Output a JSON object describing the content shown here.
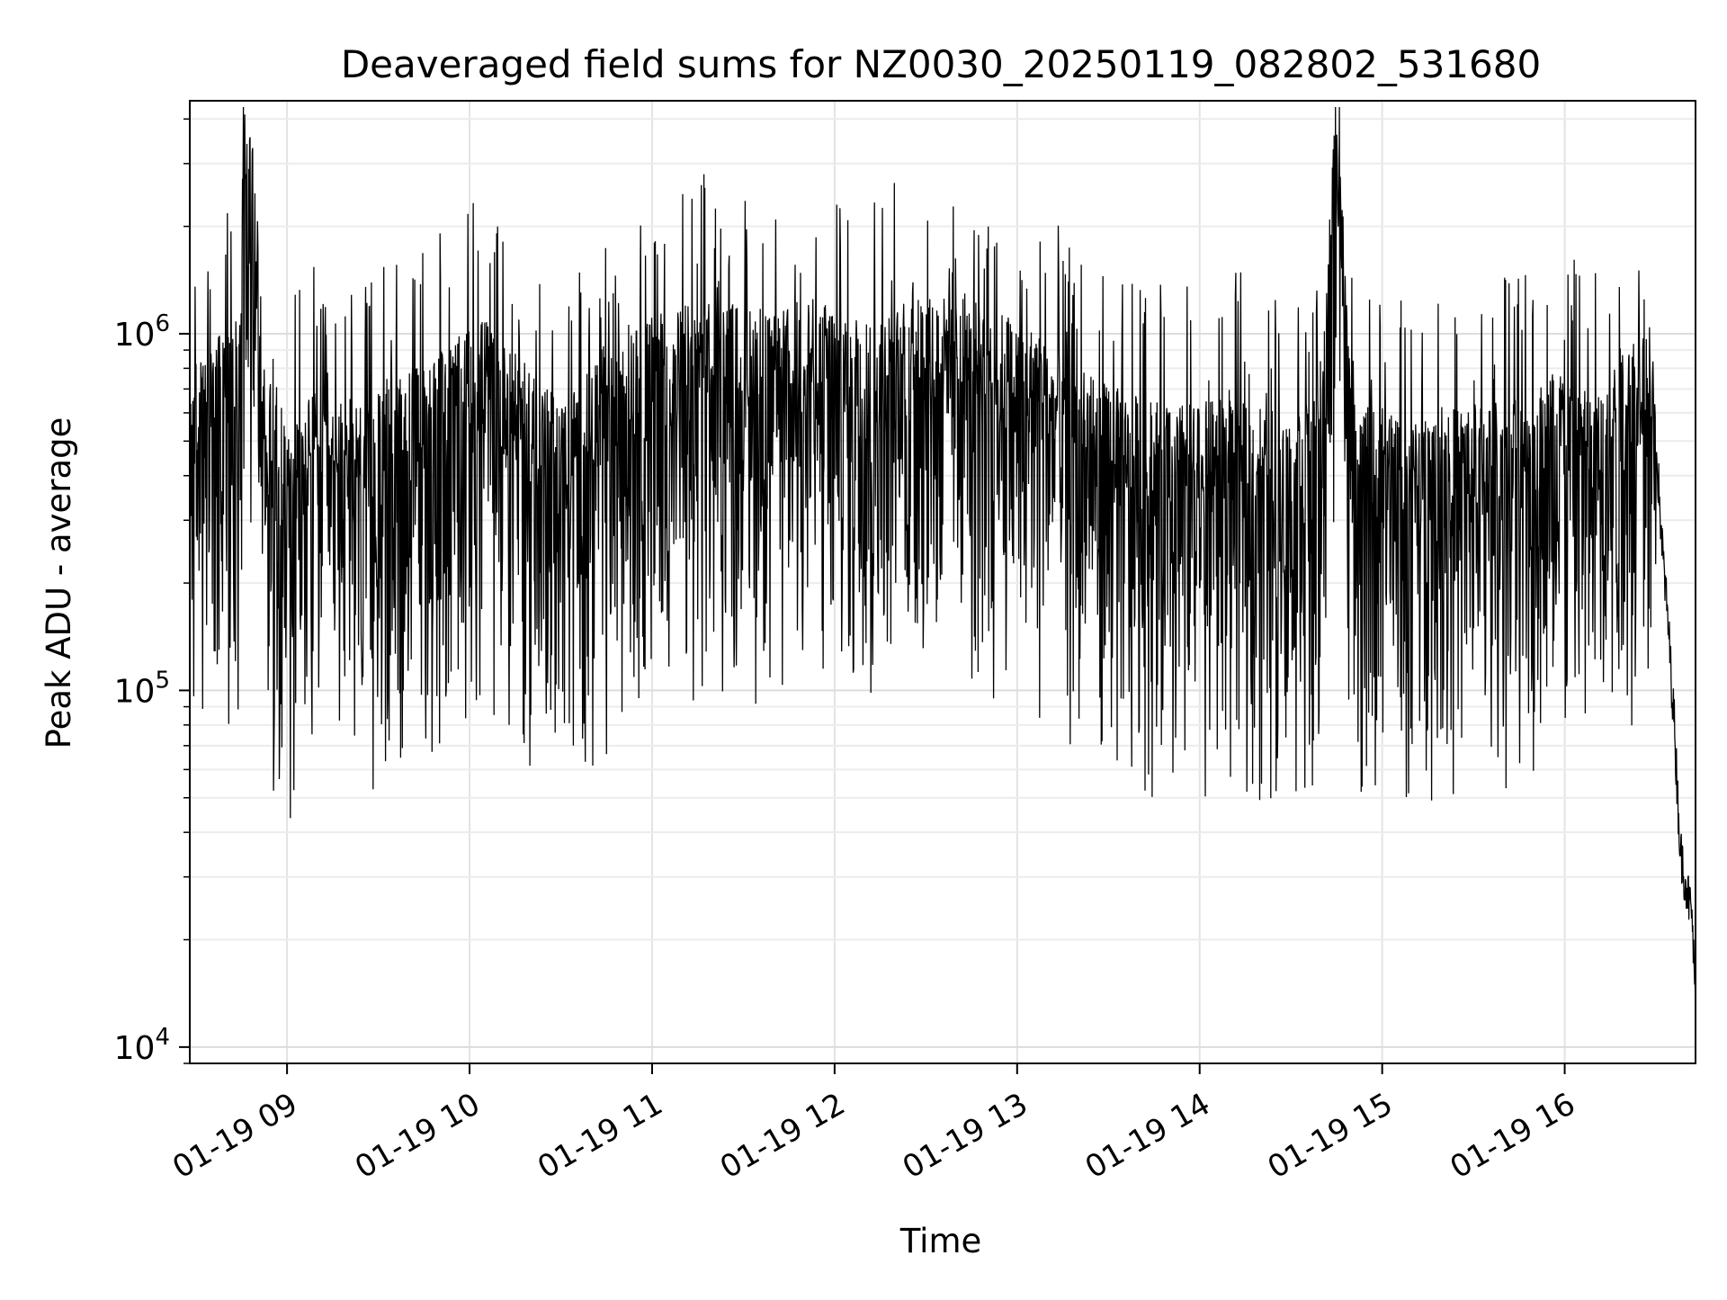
{
  "chart_data": {
    "type": "line",
    "title": "Deaveraged field sums for NZ0030_20250119_082802_531680",
    "xlabel": "Time",
    "ylabel": "Peak ADU - average",
    "yscale": "log",
    "xlim": [
      "2025-01-19 08:28:02",
      "2025-01-19 16:43:00"
    ],
    "ylim": [
      9000,
      4500000
    ],
    "grid": true,
    "x_ticks": [
      {
        "label": "01-19 09",
        "time": "2025-01-19 09:00"
      },
      {
        "label": "01-19 10",
        "time": "2025-01-19 10:00"
      },
      {
        "label": "01-19 11",
        "time": "2025-01-19 11:00"
      },
      {
        "label": "01-19 12",
        "time": "2025-01-19 12:00"
      },
      {
        "label": "01-19 13",
        "time": "2025-01-19 13:00"
      },
      {
        "label": "01-19 14",
        "time": "2025-01-19 14:00"
      },
      {
        "label": "01-19 15",
        "time": "2025-01-19 15:00"
      },
      {
        "label": "01-19 16",
        "time": "2025-01-19 16:00"
      }
    ],
    "y_ticks": [
      {
        "base": "10",
        "exp": "4",
        "value": 10000
      },
      {
        "base": "10",
        "exp": "5",
        "value": 100000
      },
      {
        "base": "10",
        "exp": "6",
        "value": 1000000
      }
    ],
    "series": [
      {
        "color": "#000000",
        "x": [
          "08:28",
          "08:32",
          "08:36",
          "08:40",
          "08:44",
          "08:46",
          "08:48",
          "08:50",
          "08:52",
          "08:54",
          "08:56",
          "09:00",
          "09:05",
          "09:10",
          "09:15",
          "09:20",
          "09:25",
          "09:30",
          "09:35",
          "09:40",
          "09:45",
          "09:50",
          "09:55",
          "10:00",
          "10:05",
          "10:10",
          "10:15",
          "10:20",
          "10:25",
          "10:30",
          "10:35",
          "10:40",
          "10:45",
          "10:50",
          "10:55",
          "11:00",
          "11:10",
          "11:20",
          "11:30",
          "11:40",
          "11:50",
          "12:00",
          "12:10",
          "12:20",
          "12:30",
          "12:40",
          "12:50",
          "13:00",
          "13:10",
          "13:20",
          "13:30",
          "13:40",
          "13:50",
          "14:00",
          "14:10",
          "14:20",
          "14:30",
          "14:40",
          "14:45",
          "14:50",
          "15:00",
          "15:10",
          "15:20",
          "15:30",
          "15:40",
          "15:50",
          "15:55",
          "16:00",
          "16:10",
          "16:20",
          "16:25",
          "16:30",
          "16:32",
          "16:34",
          "16:36",
          "16:38",
          "16:40",
          "16:42",
          "16:43"
        ],
        "y": [
          500000,
          550000,
          600000,
          650000,
          700000,
          2900000,
          2500000,
          1500000,
          600000,
          500000,
          400000,
          350000,
          400000,
          450000,
          380000,
          420000,
          400000,
          450000,
          480000,
          500000,
          520000,
          550000,
          600000,
          650000,
          700000,
          600000,
          550000,
          500000,
          450000,
          400000,
          450000,
          500000,
          550000,
          600000,
          650000,
          700000,
          750000,
          800000,
          750000,
          700000,
          800000,
          750000,
          700000,
          750000,
          800000,
          800000,
          750000,
          700000,
          600000,
          500000,
          450000,
          420000,
          400000,
          400000,
          420000,
          400000,
          380000,
          420000,
          3500000,
          400000,
          380000,
          350000,
          380000,
          400000,
          420000,
          450000,
          500000,
          500000,
          450000,
          600000,
          700000,
          500000,
          250000,
          150000,
          80000,
          35000,
          28000,
          22000,
          12000
        ]
      }
    ]
  }
}
